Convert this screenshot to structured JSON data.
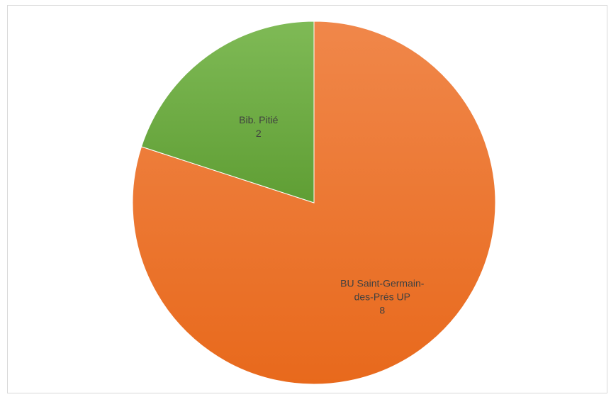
{
  "chart_data": {
    "type": "pie",
    "title": "",
    "legend": "none",
    "slices": [
      {
        "label_lines": [
          "BU Saint-Germain-",
          "des-Prés UP"
        ],
        "value": 8,
        "value_label": "8",
        "color_top": "#f0874a",
        "color_bottom": "#e8691c"
      },
      {
        "label_lines": [
          "Bib. Pitié"
        ],
        "value": 2,
        "value_label": "2",
        "color_top": "#7fba56",
        "color_bottom": "#5f9e34"
      }
    ],
    "start_angle_deg": 0,
    "direction": "clockwise",
    "border_color": "#ffffff"
  }
}
